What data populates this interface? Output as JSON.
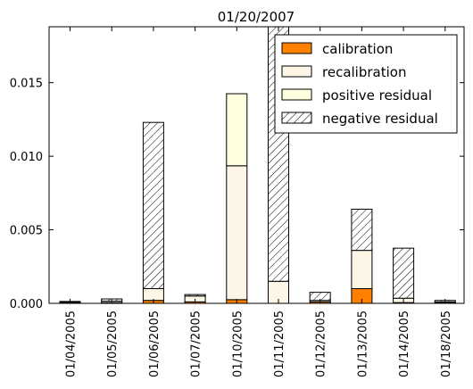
{
  "chart_data": {
    "type": "bar",
    "stacked": true,
    "title": "01/20/2007",
    "xlabel": "",
    "ylabel": "",
    "ylim": [
      0,
      0.0188
    ],
    "yticks": [
      "0.000",
      "0.005",
      "0.010",
      "0.015"
    ],
    "ytick_values": [
      0,
      0.005,
      0.01,
      0.015
    ],
    "categories": [
      "01/04/2005",
      "01/05/2005",
      "01/06/2005",
      "01/07/2005",
      "01/10/2005",
      "01/11/2005",
      "01/12/2005",
      "01/13/2005",
      "01/14/2005",
      "01/18/2005"
    ],
    "series": [
      {
        "name": "calibration",
        "color": "#ff8000",
        "pattern": "solid",
        "values": [
          5e-05,
          5e-05,
          0.0002,
          0.0001,
          0.00025,
          0.0,
          0.0001,
          0.001,
          5e-05,
          5e-05
        ]
      },
      {
        "name": "recalibration",
        "color": "#fdf5e6",
        "pattern": "solid",
        "values": [
          5e-05,
          0.0001,
          0.0008,
          0.0004,
          0.0091,
          0.0015,
          0.0001,
          0.0026,
          0.0003,
          5e-05
        ]
      },
      {
        "name": "positive residual",
        "color": "#ffffe0",
        "pattern": "solid",
        "values": [
          0.0,
          0.0,
          0.0,
          0.0,
          0.0049,
          0.0,
          0.0,
          0.0,
          0.0,
          0.0
        ]
      },
      {
        "name": "negative residual",
        "color": "#ffffff",
        "pattern": "hatch",
        "values": [
          3e-05,
          0.00015,
          0.0113,
          0.0001,
          0.0,
          0.0185,
          0.00055,
          0.0028,
          0.0034,
          0.0001
        ]
      }
    ],
    "legend": "top-right",
    "grid": false
  }
}
